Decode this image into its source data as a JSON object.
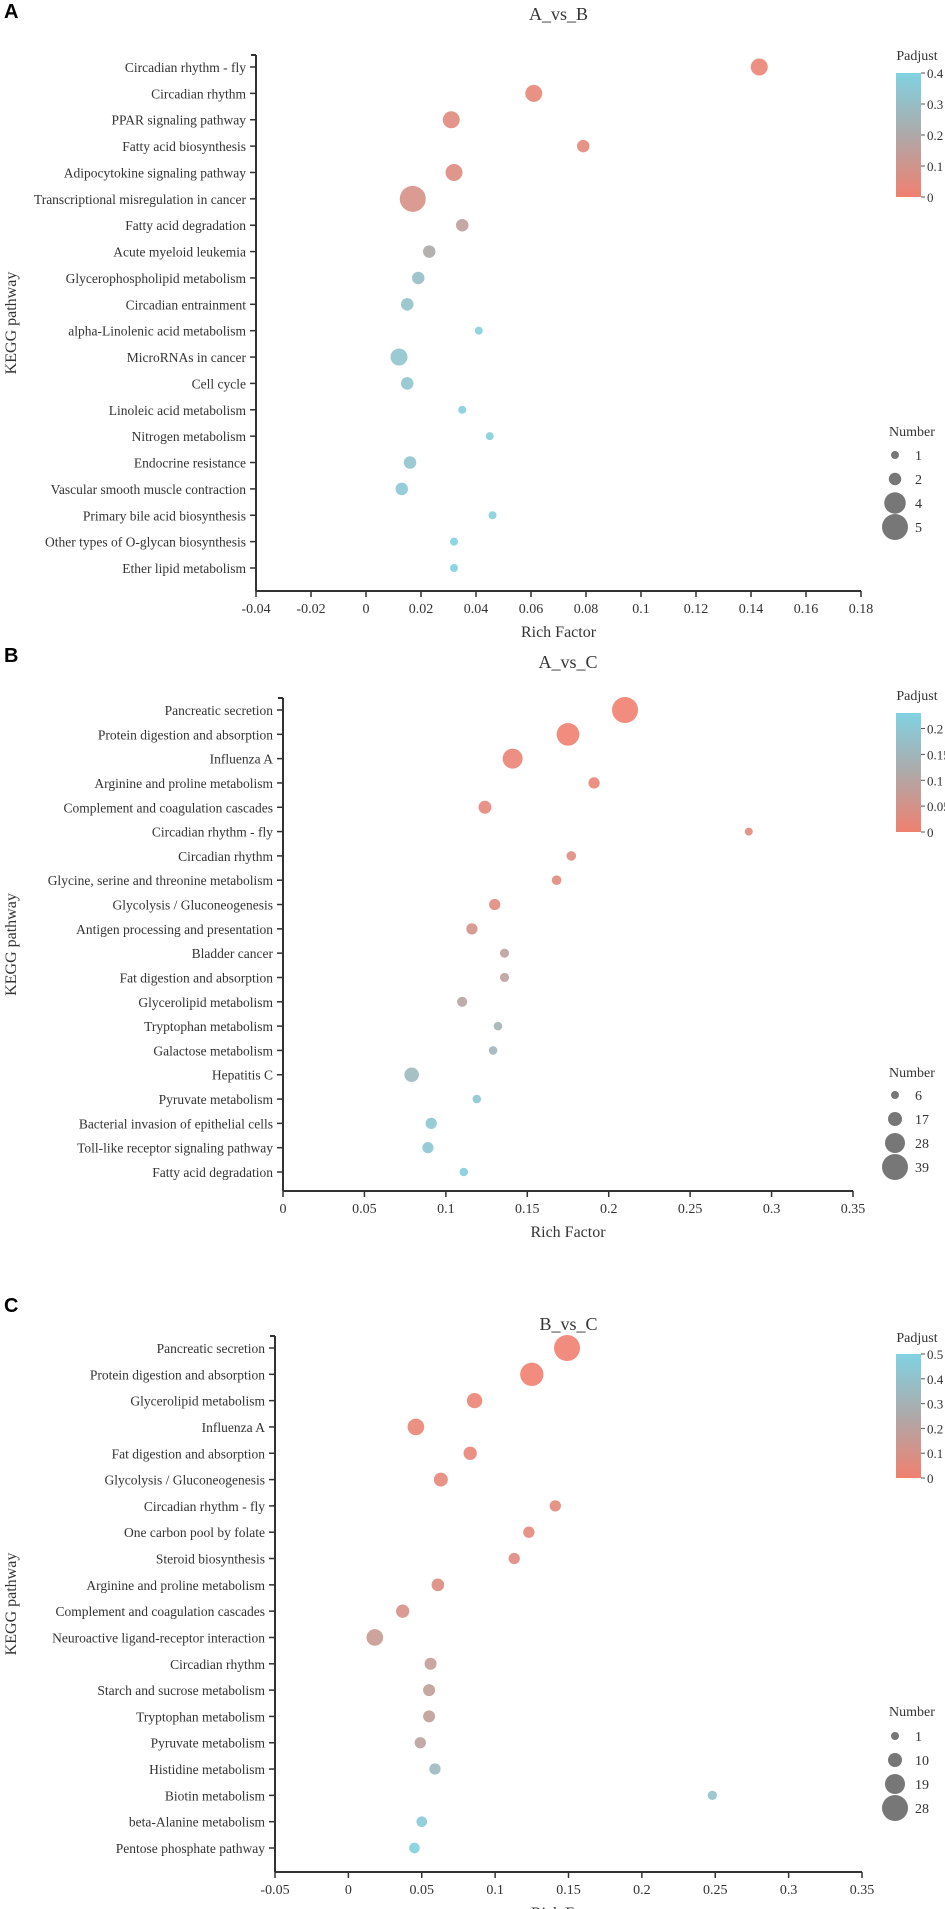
{
  "chart_data": [
    {
      "type": "scatter",
      "panel": "A",
      "title": "A_vs_B",
      "xlabel": "Rich Factor",
      "ylabel": "KEGG pathway",
      "xlim": [
        -0.04,
        0.18
      ],
      "xticks": [
        -0.04,
        -0.02,
        0,
        0.02,
        0.04,
        0.06,
        0.08,
        0.1,
        0.12,
        0.14,
        0.16,
        0.18
      ],
      "color_legend": {
        "title": "Padjust",
        "range": [
          0,
          0.4
        ],
        "ticks": [
          0,
          0.1,
          0.2,
          0.3,
          0.4
        ]
      },
      "size_legend": {
        "title": "Number",
        "values": [
          1,
          2,
          4,
          5
        ]
      },
      "colors": {
        "low": "#F08070",
        "mid": "#AEA9A9",
        "high": "#80D2E2"
      },
      "points": [
        {
          "pathway": "Circadian rhythm - fly",
          "rich_factor": 0.143,
          "padjust": 0.02,
          "number": 3
        },
        {
          "pathway": "Circadian rhythm",
          "rich_factor": 0.061,
          "padjust": 0.03,
          "number": 3
        },
        {
          "pathway": "PPAR signaling pathway",
          "rich_factor": 0.031,
          "padjust": 0.05,
          "number": 3
        },
        {
          "pathway": "Fatty acid biosynthesis",
          "rich_factor": 0.079,
          "padjust": 0.04,
          "number": 2
        },
        {
          "pathway": "Adipocytokine signaling pathway",
          "rich_factor": 0.032,
          "padjust": 0.06,
          "number": 3
        },
        {
          "pathway": "Transcriptional misregulation in cancer",
          "rich_factor": 0.017,
          "padjust": 0.08,
          "number": 5
        },
        {
          "pathway": "Fatty acid degradation",
          "rich_factor": 0.035,
          "padjust": 0.15,
          "number": 2
        },
        {
          "pathway": "Acute myeloid leukemia",
          "rich_factor": 0.023,
          "padjust": 0.2,
          "number": 2
        },
        {
          "pathway": "Glycerophospholipid metabolism",
          "rich_factor": 0.019,
          "padjust": 0.3,
          "number": 2
        },
        {
          "pathway": "Circadian entrainment",
          "rich_factor": 0.015,
          "padjust": 0.32,
          "number": 2
        },
        {
          "pathway": "alpha-Linolenic acid metabolism",
          "rich_factor": 0.041,
          "padjust": 0.38,
          "number": 1
        },
        {
          "pathway": "MicroRNAs in cancer",
          "rich_factor": 0.012,
          "padjust": 0.33,
          "number": 3
        },
        {
          "pathway": "Cell cycle",
          "rich_factor": 0.015,
          "padjust": 0.33,
          "number": 2
        },
        {
          "pathway": "Linoleic acid metabolism",
          "rich_factor": 0.035,
          "padjust": 0.38,
          "number": 1
        },
        {
          "pathway": "Nitrogen metabolism",
          "rich_factor": 0.045,
          "padjust": 0.38,
          "number": 1
        },
        {
          "pathway": "Endocrine resistance",
          "rich_factor": 0.016,
          "padjust": 0.33,
          "number": 2
        },
        {
          "pathway": "Vascular smooth muscle contraction",
          "rich_factor": 0.013,
          "padjust": 0.35,
          "number": 2
        },
        {
          "pathway": "Primary bile acid biosynthesis",
          "rich_factor": 0.046,
          "padjust": 0.38,
          "number": 1
        },
        {
          "pathway": "Other types of O-glycan biosynthesis",
          "rich_factor": 0.032,
          "padjust": 0.39,
          "number": 1
        },
        {
          "pathway": "Ether lipid metabolism",
          "rich_factor": 0.032,
          "padjust": 0.39,
          "number": 1
        }
      ]
    },
    {
      "type": "scatter",
      "panel": "B",
      "title": "A_vs_C",
      "xlabel": "Rich Factor",
      "ylabel": "KEGG pathway",
      "xlim": [
        0,
        0.35
      ],
      "xticks": [
        0,
        0.05,
        0.1,
        0.15,
        0.2,
        0.25,
        0.3,
        0.35
      ],
      "color_legend": {
        "title": "Padjust",
        "range": [
          0,
          0.23
        ],
        "ticks": [
          0,
          0.05,
          0.1,
          0.15,
          0.2
        ]
      },
      "size_legend": {
        "title": "Number",
        "values": [
          6,
          17,
          28,
          39
        ]
      },
      "colors": {
        "low": "#F08070",
        "mid": "#AEA9A9",
        "high": "#80D2E2"
      },
      "points": [
        {
          "pathway": "Pancreatic secretion",
          "rich_factor": 0.21,
          "padjust": 0.0,
          "number": 39
        },
        {
          "pathway": "Protein digestion and absorption",
          "rich_factor": 0.175,
          "padjust": 0.0,
          "number": 33
        },
        {
          "pathway": "Influenza A",
          "rich_factor": 0.141,
          "padjust": 0.01,
          "number": 28
        },
        {
          "pathway": "Arginine and proline metabolism",
          "rich_factor": 0.191,
          "padjust": 0.01,
          "number": 12
        },
        {
          "pathway": "Complement and coagulation cascades",
          "rich_factor": 0.124,
          "padjust": 0.02,
          "number": 15
        },
        {
          "pathway": "Circadian rhythm - fly",
          "rich_factor": 0.286,
          "padjust": 0.02,
          "number": 6
        },
        {
          "pathway": "Circadian rhythm",
          "rich_factor": 0.177,
          "padjust": 0.03,
          "number": 9
        },
        {
          "pathway": "Glycine, serine and threonine metabolism",
          "rich_factor": 0.168,
          "padjust": 0.03,
          "number": 9
        },
        {
          "pathway": "Glycolysis / Gluconeogenesis",
          "rich_factor": 0.13,
          "padjust": 0.03,
          "number": 12
        },
        {
          "pathway": "Antigen processing and presentation",
          "rich_factor": 0.116,
          "padjust": 0.05,
          "number": 12
        },
        {
          "pathway": "Bladder cancer",
          "rich_factor": 0.136,
          "padjust": 0.09,
          "number": 8
        },
        {
          "pathway": "Fat digestion and absorption",
          "rich_factor": 0.136,
          "padjust": 0.09,
          "number": 8
        },
        {
          "pathway": "Glycerolipid metabolism",
          "rich_factor": 0.11,
          "padjust": 0.1,
          "number": 10
        },
        {
          "pathway": "Tryptophan metabolism",
          "rich_factor": 0.132,
          "padjust": 0.14,
          "number": 7
        },
        {
          "pathway": "Galactose metabolism",
          "rich_factor": 0.129,
          "padjust": 0.15,
          "number": 7
        },
        {
          "pathway": "Hepatitis C",
          "rich_factor": 0.079,
          "padjust": 0.16,
          "number": 18
        },
        {
          "pathway": "Pyruvate metabolism",
          "rich_factor": 0.119,
          "padjust": 0.2,
          "number": 7
        },
        {
          "pathway": "Bacterial invasion of epithelial cells",
          "rich_factor": 0.091,
          "padjust": 0.2,
          "number": 12
        },
        {
          "pathway": "Toll-like receptor signaling pathway",
          "rich_factor": 0.089,
          "padjust": 0.2,
          "number": 12
        },
        {
          "pathway": "Fatty acid degradation",
          "rich_factor": 0.111,
          "padjust": 0.22,
          "number": 7
        }
      ]
    },
    {
      "type": "scatter",
      "panel": "C",
      "title": "B_vs_C",
      "xlabel": "Rich Factor",
      "ylabel": "KEGG pathway",
      "xlim": [
        -0.05,
        0.35
      ],
      "xticks": [
        -0.05,
        0,
        0.05,
        0.1,
        0.15,
        0.2,
        0.25,
        0.3,
        0.35
      ],
      "color_legend": {
        "title": "Padjust",
        "range": [
          0,
          0.5
        ],
        "ticks": [
          0,
          0.1,
          0.2,
          0.3,
          0.4,
          0.5
        ]
      },
      "size_legend": {
        "title": "Number",
        "values": [
          1,
          10,
          19,
          28
        ]
      },
      "colors": {
        "low": "#F08070",
        "mid": "#AEA9A9",
        "high": "#80D2E2"
      },
      "points": [
        {
          "pathway": "Pancreatic secretion",
          "rich_factor": 0.149,
          "padjust": 0.0,
          "number": 28
        },
        {
          "pathway": "Protein digestion and absorption",
          "rich_factor": 0.125,
          "padjust": 0.0,
          "number": 24
        },
        {
          "pathway": "Glycerolipid metabolism",
          "rich_factor": 0.086,
          "padjust": 0.02,
          "number": 12
        },
        {
          "pathway": "Influenza A",
          "rich_factor": 0.046,
          "padjust": 0.03,
          "number": 14
        },
        {
          "pathway": "Fat digestion and absorption",
          "rich_factor": 0.083,
          "padjust": 0.03,
          "number": 9
        },
        {
          "pathway": "Glycolysis / Gluconeogenesis",
          "rich_factor": 0.063,
          "padjust": 0.04,
          "number": 10
        },
        {
          "pathway": "Circadian rhythm - fly",
          "rich_factor": 0.141,
          "padjust": 0.05,
          "number": 6
        },
        {
          "pathway": "One carbon pool by folate",
          "rich_factor": 0.123,
          "padjust": 0.05,
          "number": 6
        },
        {
          "pathway": "Steroid biosynthesis",
          "rich_factor": 0.113,
          "padjust": 0.06,
          "number": 6
        },
        {
          "pathway": "Arginine and proline metabolism",
          "rich_factor": 0.061,
          "padjust": 0.07,
          "number": 8
        },
        {
          "pathway": "Complement and coagulation cascades",
          "rich_factor": 0.037,
          "padjust": 0.1,
          "number": 9
        },
        {
          "pathway": "Neuroactive ligand-receptor interaction",
          "rich_factor": 0.018,
          "padjust": 0.15,
          "number": 14
        },
        {
          "pathway": "Circadian rhythm",
          "rich_factor": 0.056,
          "padjust": 0.17,
          "number": 7
        },
        {
          "pathway": "Starch and sucrose metabolism",
          "rich_factor": 0.055,
          "padjust": 0.18,
          "number": 7
        },
        {
          "pathway": "Tryptophan metabolism",
          "rich_factor": 0.055,
          "padjust": 0.18,
          "number": 7
        },
        {
          "pathway": "Pyruvate metabolism",
          "rich_factor": 0.049,
          "padjust": 0.2,
          "number": 6
        },
        {
          "pathway": "Histidine metabolism",
          "rich_factor": 0.059,
          "padjust": 0.35,
          "number": 6
        },
        {
          "pathway": "Biotin metabolism",
          "rich_factor": 0.248,
          "padjust": 0.4,
          "number": 3
        },
        {
          "pathway": "beta-Alanine metabolism",
          "rich_factor": 0.05,
          "padjust": 0.45,
          "number": 5
        },
        {
          "pathway": "Pentose phosphate pathway",
          "rich_factor": 0.045,
          "padjust": 0.48,
          "number": 5
        }
      ]
    }
  ]
}
